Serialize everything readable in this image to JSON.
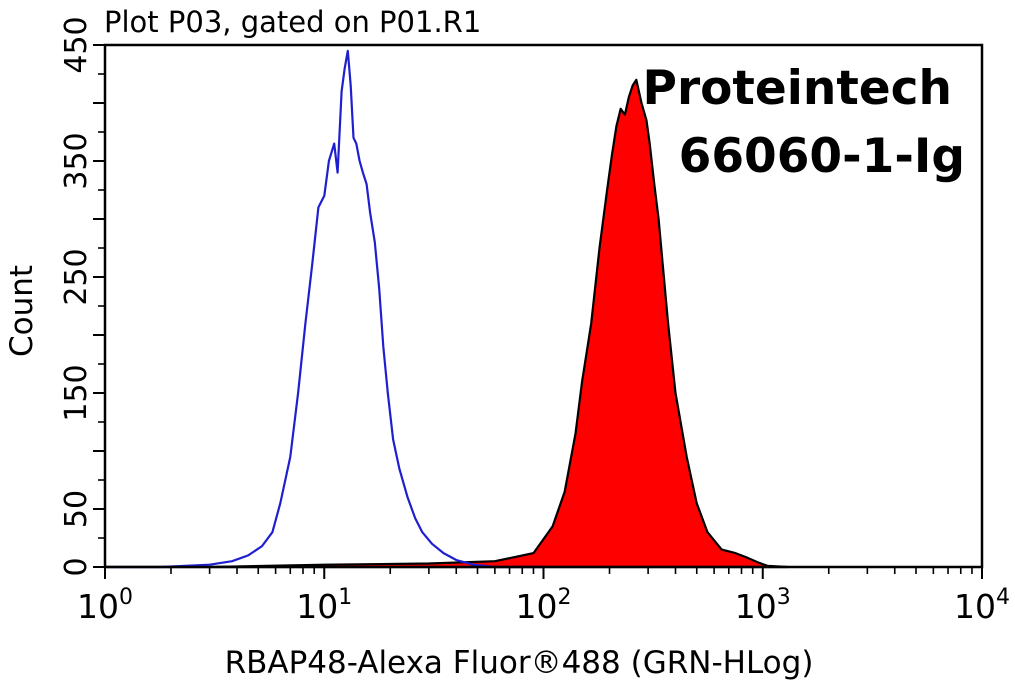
{
  "chart_data": {
    "type": "area",
    "title": "Plot P03, gated on P01.R1",
    "xlabel": "RBAP48-Alexa Fluor®488 (GRN-HLog)",
    "ylabel": "Count",
    "x_scale": "log",
    "xlim": [
      1,
      10000
    ],
    "ylim": [
      0,
      450
    ],
    "x_ticks": [
      {
        "base": "10",
        "exp": "0",
        "value": 1
      },
      {
        "base": "10",
        "exp": "1",
        "value": 10
      },
      {
        "base": "10",
        "exp": "2",
        "value": 100
      },
      {
        "base": "10",
        "exp": "3",
        "value": 1000
      },
      {
        "base": "10",
        "exp": "4",
        "value": 10000
      }
    ],
    "y_ticks": [
      "0",
      "50",
      "150",
      "250",
      "350",
      "450"
    ],
    "y_tick_values": [
      0,
      50,
      150,
      250,
      350,
      450
    ],
    "annotation": [
      "Proteintech",
      "66060-1-Ig"
    ],
    "series": [
      {
        "style": "outline",
        "color": "#1f1fd0",
        "x": [
          1,
          1.8,
          3,
          3.8,
          4.5,
          5.2,
          5.8,
          6.3,
          7,
          7.6,
          8.2,
          8.8,
          9.4,
          10,
          10.5,
          11.1,
          11.5,
          12,
          12.4,
          12.8,
          13.2,
          13.6,
          14,
          14.5,
          15,
          15.6,
          16.2,
          17,
          17.8,
          18.6,
          19.5,
          20.6,
          22,
          24,
          26,
          28,
          31,
          35,
          40,
          48,
          60,
          100
        ],
        "values": [
          0,
          0,
          2,
          5,
          10,
          18,
          30,
          55,
          95,
          150,
          210,
          260,
          310,
          320,
          350,
          365,
          340,
          410,
          430,
          445,
          415,
          370,
          365,
          350,
          340,
          330,
          305,
          280,
          240,
          190,
          150,
          110,
          85,
          60,
          42,
          30,
          20,
          12,
          6,
          2,
          0,
          0
        ]
      },
      {
        "style": "filled",
        "color": "#ff0000",
        "x": [
          1,
          3,
          10,
          30,
          60,
          90,
          110,
          125,
          140,
          150,
          165,
          180,
          195,
          205,
          215,
          225,
          235,
          245,
          255,
          265,
          280,
          295,
          305,
          320,
          335,
          350,
          370,
          400,
          450,
          500,
          560,
          650,
          750,
          850,
          950,
          1050,
          1300
        ],
        "values": [
          0,
          0,
          2,
          3,
          5,
          12,
          35,
          65,
          115,
          160,
          210,
          275,
          325,
          355,
          380,
          395,
          390,
          405,
          415,
          420,
          400,
          385,
          365,
          330,
          300,
          260,
          210,
          150,
          95,
          55,
          30,
          15,
          12,
          8,
          4,
          1,
          0
        ]
      }
    ]
  }
}
